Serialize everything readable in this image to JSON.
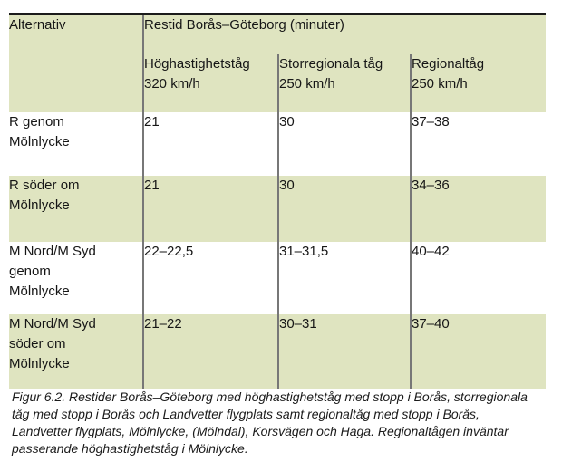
{
  "table": {
    "corner_header": "Alternativ",
    "group_header": "Restid Borås–Göteborg (minuter)",
    "columns": [
      {
        "line1": "Höghastighetståg",
        "line2": "320 km/h"
      },
      {
        "line1": "Storregionala tåg",
        "line2": "250 km/h"
      },
      {
        "line1": "Regionaltåg",
        "line2": "250 km/h"
      }
    ],
    "rows": [
      {
        "label_lines": [
          "R genom",
          "Mölnlycke"
        ],
        "values": [
          "21",
          "30",
          "37–38"
        ]
      },
      {
        "label_lines": [
          "R söder om",
          "Mölnlycke"
        ],
        "values": [
          "21",
          "30",
          "34–36"
        ]
      },
      {
        "label_lines": [
          "M Nord/M Syd",
          "genom",
          "Mölnlycke"
        ],
        "values": [
          "22–22,5",
          "31–31,5",
          "40–42"
        ]
      },
      {
        "label_lines": [
          "M Nord/M Syd",
          "söder om",
          "Mölnlycke"
        ],
        "values": [
          "21–22",
          "30–31",
          "37–40"
        ]
      }
    ]
  },
  "caption": {
    "lines": [
      "Figur 6.2.  Restider Borås–Göteborg med höghastighetståg med stopp i Borås, storregionala",
      "tåg med stopp i Borås och Landvetter flygplats samt regionaltåg med stopp i Borås,",
      "Landvetter flygplats, Mölnlycke, (Mölndal), Korsvägen och Haga. Regionaltågen inväntar",
      "passerande höghastighetståg i Mölnlycke."
    ]
  },
  "colors": {
    "row_green": "#dfe4c0",
    "divider_gray": "#777777",
    "top_border": "#1b1b1b"
  }
}
